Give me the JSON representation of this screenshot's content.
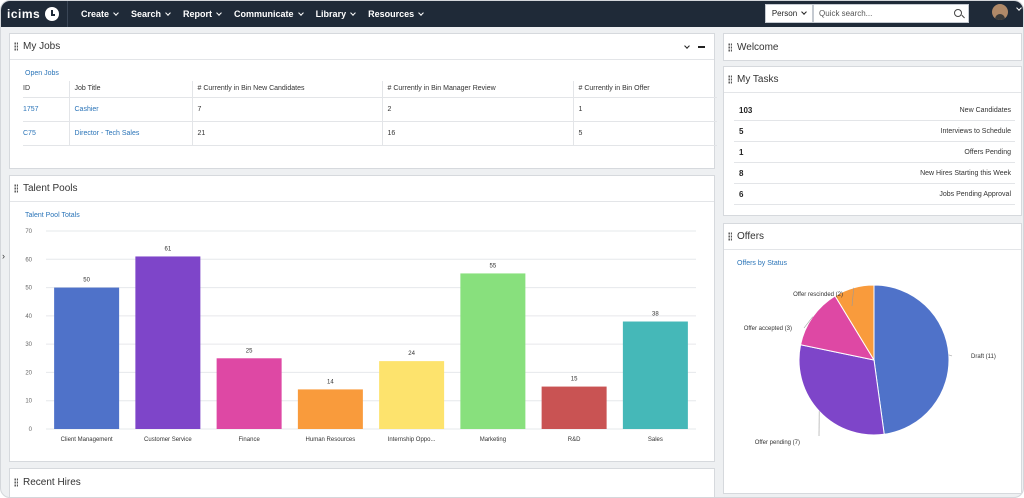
{
  "topnav": {
    "logo": "icims",
    "menu": [
      {
        "label": "Create"
      },
      {
        "label": "Search"
      },
      {
        "label": "Report"
      },
      {
        "label": "Communicate"
      },
      {
        "label": "Library"
      },
      {
        "label": "Resources"
      }
    ],
    "person_select": "Person",
    "search_placeholder": "Quick search..."
  },
  "my_jobs": {
    "title": "My Jobs",
    "subtitle": "Open Jobs",
    "columns": [
      "ID",
      "Job Title",
      "# Currently in Bin New Candidates",
      "# Currently in Bin Manager Review",
      "# Currently in Bin Offer"
    ],
    "rows": [
      {
        "id": "1757",
        "title": "Cashier",
        "new": "7",
        "review": "2",
        "offer": "1"
      },
      {
        "id": "C75",
        "title": "Director - Tech Sales",
        "new": "21",
        "review": "16",
        "offer": "5"
      }
    ]
  },
  "welcome": {
    "title": "Welcome"
  },
  "my_tasks": {
    "title": "My Tasks",
    "items": [
      {
        "count": "103",
        "label": "New Candidates"
      },
      {
        "count": "5",
        "label": "Interviews to Schedule"
      },
      {
        "count": "1",
        "label": "Offers Pending"
      },
      {
        "count": "8",
        "label": "New Hires Starting this Week"
      },
      {
        "count": "6",
        "label": "Jobs Pending Approval"
      }
    ]
  },
  "talent_pools": {
    "title": "Talent Pools",
    "subtitle": "Talent Pool Totals"
  },
  "offers": {
    "title": "Offers",
    "subtitle": "Offers by Status"
  },
  "recent_hires": {
    "title": "Recent Hires"
  },
  "chart_data": [
    {
      "type": "bar",
      "categories": [
        "Client Management",
        "Customer Service",
        "Finance",
        "Human Resources",
        "Internship Oppo...",
        "Marketing",
        "R&D",
        "Sales"
      ],
      "values": [
        50,
        61,
        25,
        14,
        24,
        55,
        15,
        38
      ],
      "colors": [
        "#4f72c9",
        "#7e45c9",
        "#de48a4",
        "#f99b3c",
        "#fde36d",
        "#88e07d",
        "#c95353",
        "#45b8b8"
      ],
      "ylim": [
        0,
        70
      ],
      "yticks": [
        0,
        10,
        20,
        30,
        40,
        50,
        60,
        70
      ],
      "grid": true,
      "data_labels": true
    },
    {
      "type": "pie",
      "slices": [
        {
          "label": "Draft (11)",
          "value": 11,
          "color": "#4f72c9"
        },
        {
          "label": "Offer pending (7)",
          "value": 7,
          "color": "#7e45c9"
        },
        {
          "label": "Offer accepted (3)",
          "value": 3,
          "color": "#de48a4"
        },
        {
          "label": "Offer rescinded (2)",
          "value": 2,
          "color": "#f99b3c"
        }
      ]
    }
  ]
}
